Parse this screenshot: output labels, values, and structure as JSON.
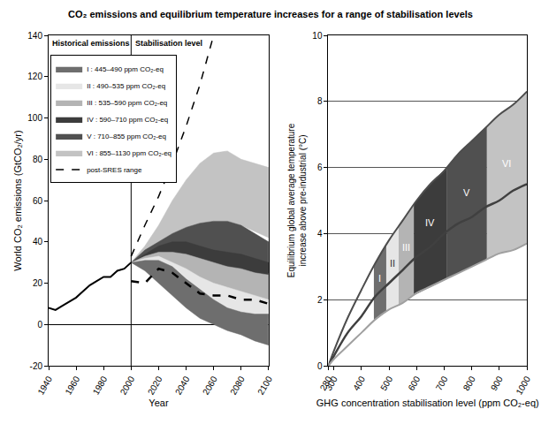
{
  "title": "CO₂ emissions and equilibrium temperature increases for a range of stabilisation levels",
  "chart_data": [
    {
      "type": "area",
      "x_label": "Year",
      "y_label": "World CO₂ emissions (GtCO₂/yr)",
      "annotations": [
        "Historical emissions",
        "Stabilisation level"
      ],
      "xlim": [
        1940,
        2100
      ],
      "xticks": [
        1940,
        1960,
        1980,
        2000,
        2020,
        2040,
        2060,
        2080,
        2100
      ],
      "ylim": [
        -20,
        140
      ],
      "yticks": [
        -20,
        0,
        20,
        40,
        60,
        80,
        100,
        120,
        140
      ],
      "grid": false,
      "legend": "upper left",
      "series": [
        {
          "type": "line",
          "color": "#000000",
          "x": [
            1940,
            1945,
            1950,
            1955,
            1960,
            1965,
            1970,
            1975,
            1980,
            1985,
            1990,
            1995,
            2000
          ],
          "values": [
            8,
            7,
            9,
            11,
            13,
            16,
            19,
            21,
            23,
            23,
            26,
            27,
            30
          ]
        },
        {
          "name": "I : 445–490 ppm CO₂-eq",
          "type": "band",
          "color": "#6e6e6e",
          "x": [
            2000,
            2010,
            2020,
            2030,
            2040,
            2050,
            2060,
            2070,
            2080,
            2090,
            2100
          ],
          "values": [
            30,
            31,
            31,
            28,
            22,
            17,
            12,
            8,
            6,
            5,
            5
          ],
          "lower": [
            30,
            26,
            20,
            14,
            8,
            3,
            0,
            -3,
            -5,
            -8,
            -10
          ]
        },
        {
          "name": "II : 490–535 ppm CO₂-eq",
          "type": "band",
          "color": "#e6e6e6",
          "x": [
            2000,
            2010,
            2020,
            2030,
            2040,
            2050,
            2060,
            2070,
            2080,
            2090,
            2100
          ],
          "values": [
            30,
            32,
            33,
            30,
            27,
            23,
            20,
            18,
            16,
            14,
            12
          ],
          "lower": [
            30,
            27,
            24,
            20,
            15,
            11,
            8,
            6,
            5,
            4,
            3
          ]
        },
        {
          "name": "III : 535–590 ppm CO₂-eq",
          "type": "band",
          "color": "#b4b4b4",
          "x": [
            2000,
            2010,
            2020,
            2030,
            2040,
            2050,
            2060,
            2070,
            2080,
            2090,
            2100
          ],
          "values": [
            30,
            33,
            35,
            35,
            34,
            32,
            30,
            28,
            27,
            25,
            24
          ],
          "lower": [
            30,
            28,
            26,
            22,
            18,
            15,
            12,
            10,
            9,
            8,
            7
          ]
        },
        {
          "name": "IV : 590–710 ppm CO₂-eq",
          "type": "band",
          "color": "#3c3c3c",
          "x": [
            2000,
            2010,
            2020,
            2030,
            2040,
            2050,
            2060,
            2070,
            2080,
            2090,
            2100
          ],
          "values": [
            30,
            34,
            38,
            40,
            40,
            38,
            36,
            35,
            34,
            32,
            30
          ],
          "lower": [
            30,
            30,
            29,
            27,
            25,
            22,
            20,
            18,
            16,
            14,
            12
          ]
        },
        {
          "name": "V : 710–855 ppm CO₂-eq",
          "type": "band",
          "color": "#505050",
          "x": [
            2000,
            2010,
            2020,
            2030,
            2040,
            2050,
            2060,
            2070,
            2080,
            2090,
            2100
          ],
          "values": [
            30,
            36,
            40,
            44,
            47,
            49,
            50,
            50,
            48,
            44,
            40
          ],
          "lower": [
            30,
            32,
            32,
            33,
            32,
            30,
            29,
            28,
            27,
            26,
            25
          ]
        },
        {
          "name": "VI : 855–1130 ppm CO₂-eq",
          "type": "band",
          "color": "#c3c3c3",
          "x": [
            2000,
            2010,
            2020,
            2030,
            2040,
            2050,
            2060,
            2070,
            2080,
            2090,
            2100
          ],
          "values": [
            30,
            38,
            48,
            60,
            70,
            78,
            83,
            84,
            80,
            78,
            76
          ],
          "lower": [
            30,
            33,
            38,
            42,
            46,
            48,
            50,
            50,
            48,
            45,
            42
          ]
        },
        {
          "name": "post-SRES range",
          "type": "line",
          "line_style": "dash",
          "color": "#000000",
          "x": [
            2000,
            2010,
            2020,
            2030,
            2040,
            2050,
            2060,
            2070,
            2080,
            2090,
            2100
          ],
          "values": [
            33,
            48,
            62,
            78,
            96,
            116,
            140,
            null,
            null,
            null,
            null
          ],
          "lower": [
            21,
            20,
            27,
            25,
            20,
            15,
            14,
            14,
            12,
            12,
            10
          ]
        }
      ]
    },
    {
      "type": "line",
      "x_label": "GHG concentration stabilisation level (ppm CO₂-eq)",
      "y_label": "Equilibrium global average temperature\nincrease above pre-industrial (°C)",
      "xlim": [
        280,
        1000
      ],
      "xticks": [
        280,
        300,
        400,
        500,
        600,
        700,
        800,
        900,
        1000
      ],
      "ylim": [
        0,
        10
      ],
      "yticks": [
        0,
        2,
        4,
        6,
        8,
        10
      ],
      "grid": "y",
      "x": [
        280,
        300,
        350,
        400,
        450,
        500,
        550,
        600,
        650,
        700,
        750,
        800,
        850,
        900,
        950,
        1000
      ],
      "series": [
        {
          "color": "#4d4d4d",
          "values": [
            0,
            0.45,
            1.45,
            2.3,
            3.1,
            3.8,
            4.4,
            5.0,
            5.5,
            5.9,
            6.4,
            6.8,
            7.2,
            7.6,
            7.9,
            8.3
          ]
        },
        {
          "color": "#404040",
          "values": [
            0,
            0.3,
            1.0,
            1.5,
            2.1,
            2.5,
            2.9,
            3.3,
            3.6,
            4.0,
            4.3,
            4.5,
            4.8,
            5.0,
            5.3,
            5.5
          ]
        },
        {
          "color": "#a0a0a0",
          "values": [
            0,
            0.2,
            0.6,
            1.0,
            1.4,
            1.7,
            1.9,
            2.2,
            2.4,
            2.6,
            2.8,
            3.0,
            3.2,
            3.4,
            3.5,
            3.7
          ]
        }
      ],
      "bands": [
        {
          "label": "I",
          "range": [
            445,
            490
          ],
          "color": "#6e6e6e"
        },
        {
          "label": "II",
          "range": [
            490,
            535
          ],
          "color": "#e6e6e6"
        },
        {
          "label": "III",
          "range": [
            535,
            590
          ],
          "color": "#b4b4b4"
        },
        {
          "label": "IV",
          "range": [
            590,
            710
          ],
          "color": "#3c3c3c"
        },
        {
          "label": "V",
          "range": [
            710,
            855
          ],
          "color": "#505050"
        },
        {
          "label": "VI",
          "range": [
            855,
            1130
          ],
          "color": "#c3c3c3"
        }
      ]
    }
  ]
}
